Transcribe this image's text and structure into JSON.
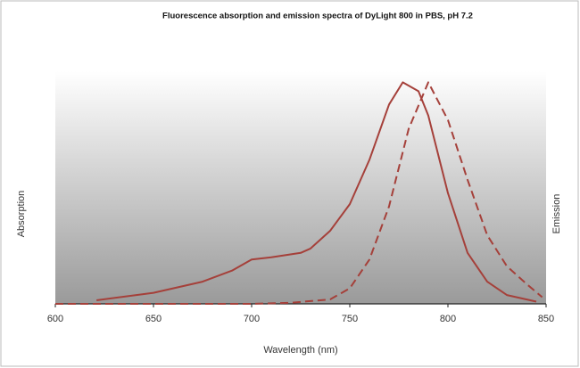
{
  "chart_data": {
    "type": "line",
    "title": "Fluorescence absorption and emission spectra of DyLight 800 in PBS, pH 7.2",
    "xlabel": "Wavelength (nm)",
    "ylabel": "Absorption",
    "y2label": "Emission",
    "xlim": [
      600,
      850
    ],
    "xticks": [
      600,
      650,
      700,
      750,
      800,
      850
    ],
    "ylim": [
      0,
      1.05
    ],
    "series": [
      {
        "color": "#a5403a",
        "dash": false,
        "x": [
          621,
          650,
          675,
          690,
          700,
          710,
          725,
          730,
          740,
          750,
          760,
          770,
          777,
          785,
          790,
          800,
          810,
          820,
          830,
          845
        ],
        "values": [
          0.016,
          0.05,
          0.1,
          0.15,
          0.2,
          0.21,
          0.23,
          0.25,
          0.33,
          0.45,
          0.65,
          0.9,
          1.0,
          0.96,
          0.85,
          0.5,
          0.23,
          0.1,
          0.04,
          0.01
        ]
      },
      {
        "color": "#a5403a",
        "dash": true,
        "x": [
          600,
          700,
          720,
          740,
          750,
          760,
          770,
          780,
          790,
          800,
          810,
          820,
          830,
          840,
          848
        ],
        "values": [
          0,
          0,
          0.005,
          0.02,
          0.07,
          0.2,
          0.44,
          0.79,
          1.0,
          0.83,
          0.56,
          0.31,
          0.17,
          0.09,
          0.03
        ]
      }
    ]
  }
}
